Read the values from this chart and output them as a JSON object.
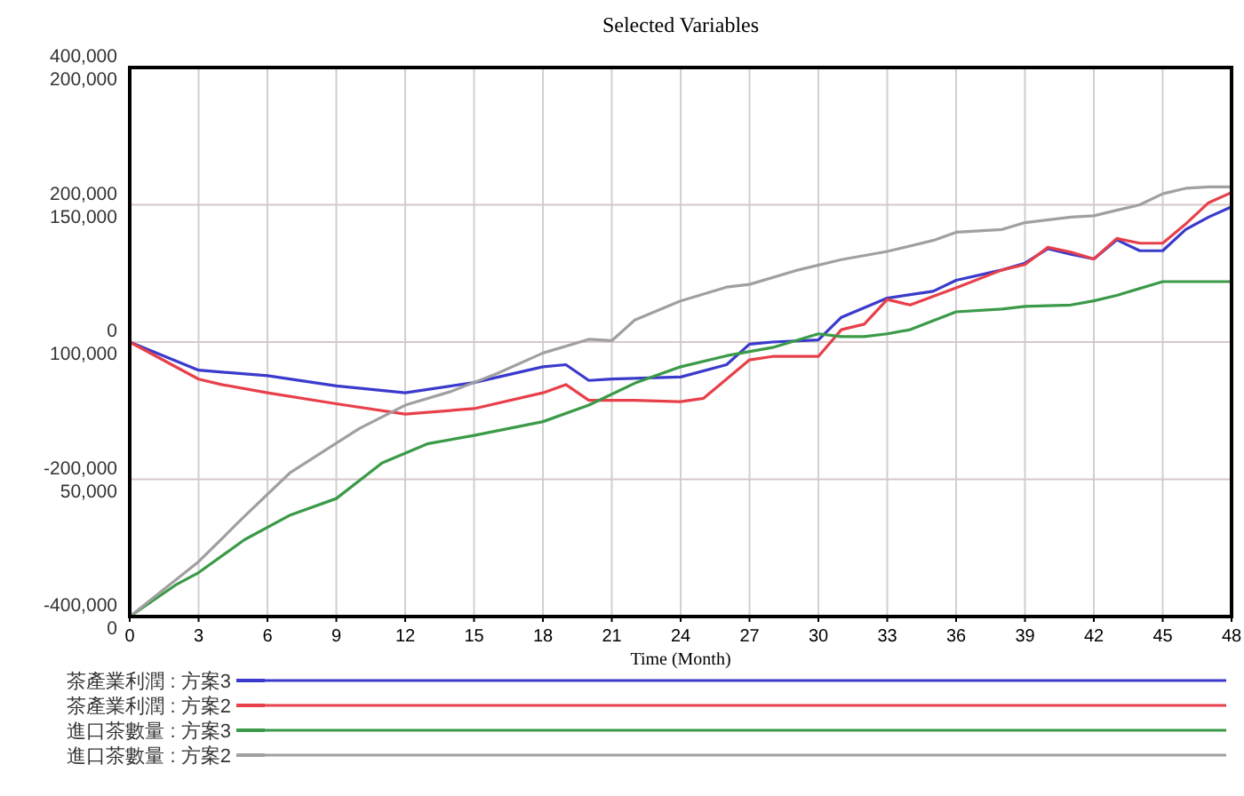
{
  "chart_data": {
    "type": "line",
    "title": "Selected Variables",
    "xlabel": "Time (Month)",
    "xlim": [
      0,
      48
    ],
    "xticks": [
      0,
      3,
      6,
      9,
      12,
      15,
      18,
      21,
      24,
      27,
      30,
      33,
      36,
      39,
      42,
      45,
      48
    ],
    "ylim": [
      -400000,
      400000
    ],
    "yticks": [
      {
        "value": -400000,
        "label": "-400,000"
      },
      {
        "value": -200000,
        "label": "-200,000"
      },
      {
        "value": 0,
        "label": "0"
      },
      {
        "value": 200000,
        "label": "200,000"
      },
      {
        "value": 400000,
        "label": "400,000"
      }
    ],
    "y2lim": [
      0,
      200000
    ],
    "y2ticks": [
      {
        "value": 0,
        "label": "0"
      },
      {
        "value": 50000,
        "label": "50,000"
      },
      {
        "value": 100000,
        "label": "100,000"
      },
      {
        "value": 150000,
        "label": "150,000"
      },
      {
        "value": 200000,
        "label": "200,000"
      }
    ],
    "grid": true,
    "legend": "bottom",
    "series": [
      {
        "name": "茶產業利潤 : 方案3",
        "color": "#3a3acc",
        "x": [
          0,
          3,
          6,
          9,
          12,
          15,
          18,
          19,
          20,
          21,
          24,
          26,
          27,
          28,
          30,
          31,
          33,
          35,
          36,
          38,
          39,
          40,
          41,
          42,
          43,
          44,
          45,
          46,
          47,
          48
        ],
        "values": [
          0,
          -41000,
          -49000,
          -64000,
          -74000,
          -59000,
          -36000,
          -33000,
          -56000,
          -54000,
          -51000,
          -33000,
          -3000,
          0,
          3000,
          36000,
          64000,
          74000,
          90000,
          105000,
          115000,
          136000,
          128000,
          121000,
          149000,
          133000,
          133000,
          164000,
          182000,
          197000
        ]
      },
      {
        "name": "茶產業利潤 : 方案2",
        "color": "#e8404a",
        "x": [
          0,
          3,
          4,
          6,
          9,
          12,
          15,
          18,
          19,
          20,
          22,
          24,
          25,
          26,
          27,
          28,
          30,
          31,
          32,
          33,
          34,
          36,
          38,
          39,
          40,
          41,
          42,
          43,
          44,
          45,
          46,
          47,
          48
        ],
        "values": [
          0,
          -54000,
          -62000,
          -74000,
          -90000,
          -105000,
          -97000,
          -74000,
          -62000,
          -85000,
          -85000,
          -87000,
          -82000,
          -54000,
          -26000,
          -21000,
          -21000,
          18000,
          26000,
          62000,
          54000,
          79000,
          105000,
          113000,
          138000,
          131000,
          121000,
          151000,
          144000,
          144000,
          172000,
          203000,
          218000
        ]
      },
      {
        "name": "進口茶數量 : 方案3",
        "color": "#3a9a48",
        "axis": "y2",
        "x": [
          0,
          2,
          3,
          5,
          7,
          9,
          11,
          13,
          15,
          18,
          20,
          21,
          22,
          24,
          26,
          28,
          30,
          31,
          32,
          33,
          34,
          36,
          38,
          39,
          41,
          42,
          43,
          45,
          48
        ],
        "values": [
          0,
          11500,
          16000,
          28000,
          37000,
          43000,
          56000,
          63000,
          66000,
          71000,
          77000,
          81000,
          85000,
          91000,
          95000,
          98000,
          103000,
          102000,
          102000,
          103000,
          104500,
          111000,
          112000,
          113000,
          113500,
          115000,
          117000,
          122000,
          122000
        ]
      },
      {
        "name": "進口茶數量 : 方案2",
        "color": "#a0a0a0",
        "axis": "y2",
        "x": [
          0,
          3,
          5,
          7,
          10,
          12,
          14,
          16,
          18,
          20,
          21,
          22,
          24,
          26,
          27,
          29,
          31,
          33,
          35,
          36,
          38,
          39,
          41,
          42,
          43,
          44,
          45,
          46,
          47,
          48
        ],
        "values": [
          0,
          20000,
          36500,
          52500,
          68500,
          77000,
          82000,
          88500,
          96000,
          101000,
          100500,
          108000,
          115000,
          120000,
          121000,
          126000,
          130000,
          133000,
          137000,
          140000,
          141000,
          143500,
          145500,
          146000,
          148000,
          150000,
          154000,
          156000,
          156500,
          156500
        ]
      }
    ]
  }
}
